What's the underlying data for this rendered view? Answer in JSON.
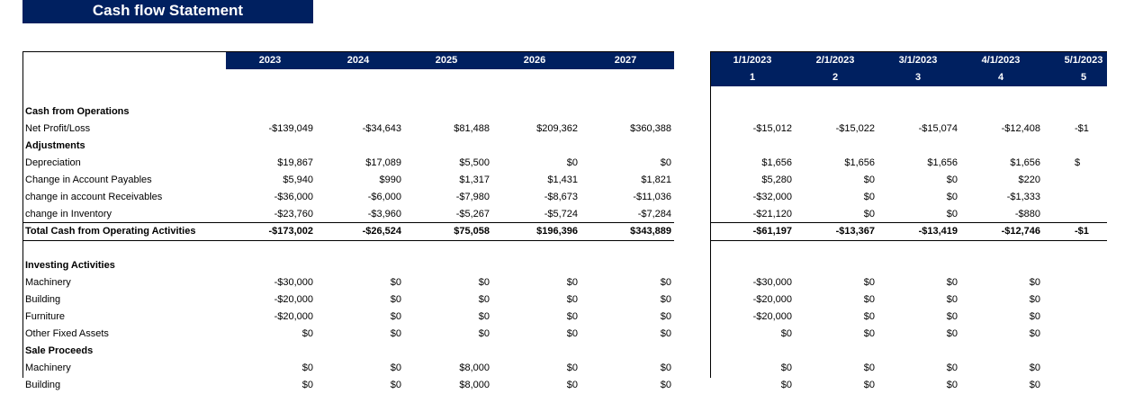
{
  "title": "Cash flow Statement",
  "colors": {
    "header_bg": "#002060",
    "header_text": "#ffffff"
  },
  "annual": {
    "headers": [
      "2023",
      "2024",
      "2025",
      "2026",
      "2027"
    ],
    "rows": [
      {
        "label": "",
        "bold": false,
        "values": []
      },
      {
        "label": "Cash from Operations",
        "bold": true,
        "values": []
      },
      {
        "label": "Net Profit/Loss",
        "bold": false,
        "values": [
          "-$139,049",
          "-$34,643",
          "$81,488",
          "$209,362",
          "$360,388"
        ]
      },
      {
        "label": "Adjustments",
        "bold": true,
        "values": []
      },
      {
        "label": "Depreciation",
        "bold": false,
        "values": [
          "$19,867",
          "$17,089",
          "$5,500",
          "$0",
          "$0"
        ]
      },
      {
        "label": "Change in Account Payables",
        "bold": false,
        "values": [
          "$5,940",
          "$990",
          "$1,317",
          "$1,431",
          "$1,821"
        ]
      },
      {
        "label": "change in account Receivables",
        "bold": false,
        "values": [
          "-$36,000",
          "-$6,000",
          "-$7,980",
          "-$8,673",
          "-$11,036"
        ]
      },
      {
        "label": "change in Inventory",
        "bold": false,
        "values": [
          "-$23,760",
          "-$3,960",
          "-$5,267",
          "-$5,724",
          "-$7,284"
        ]
      },
      {
        "label": "Total Cash from Operating Activities",
        "bold": true,
        "total": true,
        "values": [
          "-$173,002",
          "-$26,524",
          "$75,058",
          "$196,396",
          "$343,889"
        ]
      },
      {
        "label": "",
        "bold": false,
        "values": []
      },
      {
        "label": "Investing Activities",
        "bold": true,
        "values": []
      },
      {
        "label": "Machinery",
        "bold": false,
        "values": [
          "-$30,000",
          "$0",
          "$0",
          "$0",
          "$0"
        ]
      },
      {
        "label": "Building",
        "bold": false,
        "values": [
          "-$20,000",
          "$0",
          "$0",
          "$0",
          "$0"
        ]
      },
      {
        "label": "Furniture",
        "bold": false,
        "values": [
          "-$20,000",
          "$0",
          "$0",
          "$0",
          "$0"
        ]
      },
      {
        "label": "Other Fixed Assets",
        "bold": false,
        "values": [
          "$0",
          "$0",
          "$0",
          "$0",
          "$0"
        ]
      },
      {
        "label": "Sale Proceeds",
        "bold": true,
        "values": []
      },
      {
        "label": "Machinery",
        "bold": false,
        "values": [
          "$0",
          "$0",
          "$8,000",
          "$0",
          "$0"
        ]
      },
      {
        "label": "Building",
        "bold": false,
        "values": [
          "$0",
          "$0",
          "$8,000",
          "$0",
          "$0"
        ]
      }
    ]
  },
  "monthly": {
    "dates": [
      "1/1/2023",
      "2/1/2023",
      "3/1/2023",
      "4/1/2023",
      "5/1/2023"
    ],
    "periods": [
      "1",
      "2",
      "3",
      "4",
      "5"
    ],
    "rows": [
      {
        "values": []
      },
      {
        "values": []
      },
      {
        "values": [
          "-$15,012",
          "-$15,022",
          "-$15,074",
          "-$12,408",
          "-$1"
        ]
      },
      {
        "values": []
      },
      {
        "values": [
          "$1,656",
          "$1,656",
          "$1,656",
          "$1,656",
          "$"
        ]
      },
      {
        "values": [
          "$5,280",
          "$0",
          "$0",
          "$220",
          ""
        ]
      },
      {
        "values": [
          "-$32,000",
          "$0",
          "$0",
          "-$1,333",
          ""
        ]
      },
      {
        "values": [
          "-$21,120",
          "$0",
          "$0",
          "-$880",
          ""
        ]
      },
      {
        "bold": true,
        "total": true,
        "values": [
          "-$61,197",
          "-$13,367",
          "-$13,419",
          "-$12,746",
          "-$1"
        ]
      },
      {
        "values": []
      },
      {
        "values": []
      },
      {
        "values": [
          "-$30,000",
          "$0",
          "$0",
          "$0",
          ""
        ]
      },
      {
        "values": [
          "-$20,000",
          "$0",
          "$0",
          "$0",
          ""
        ]
      },
      {
        "values": [
          "-$20,000",
          "$0",
          "$0",
          "$0",
          ""
        ]
      },
      {
        "values": [
          "$0",
          "$0",
          "$0",
          "$0",
          ""
        ]
      },
      {
        "values": []
      },
      {
        "values": [
          "$0",
          "$0",
          "$0",
          "$0",
          ""
        ]
      },
      {
        "values": [
          "$0",
          "$0",
          "$0",
          "$0",
          ""
        ]
      }
    ]
  }
}
